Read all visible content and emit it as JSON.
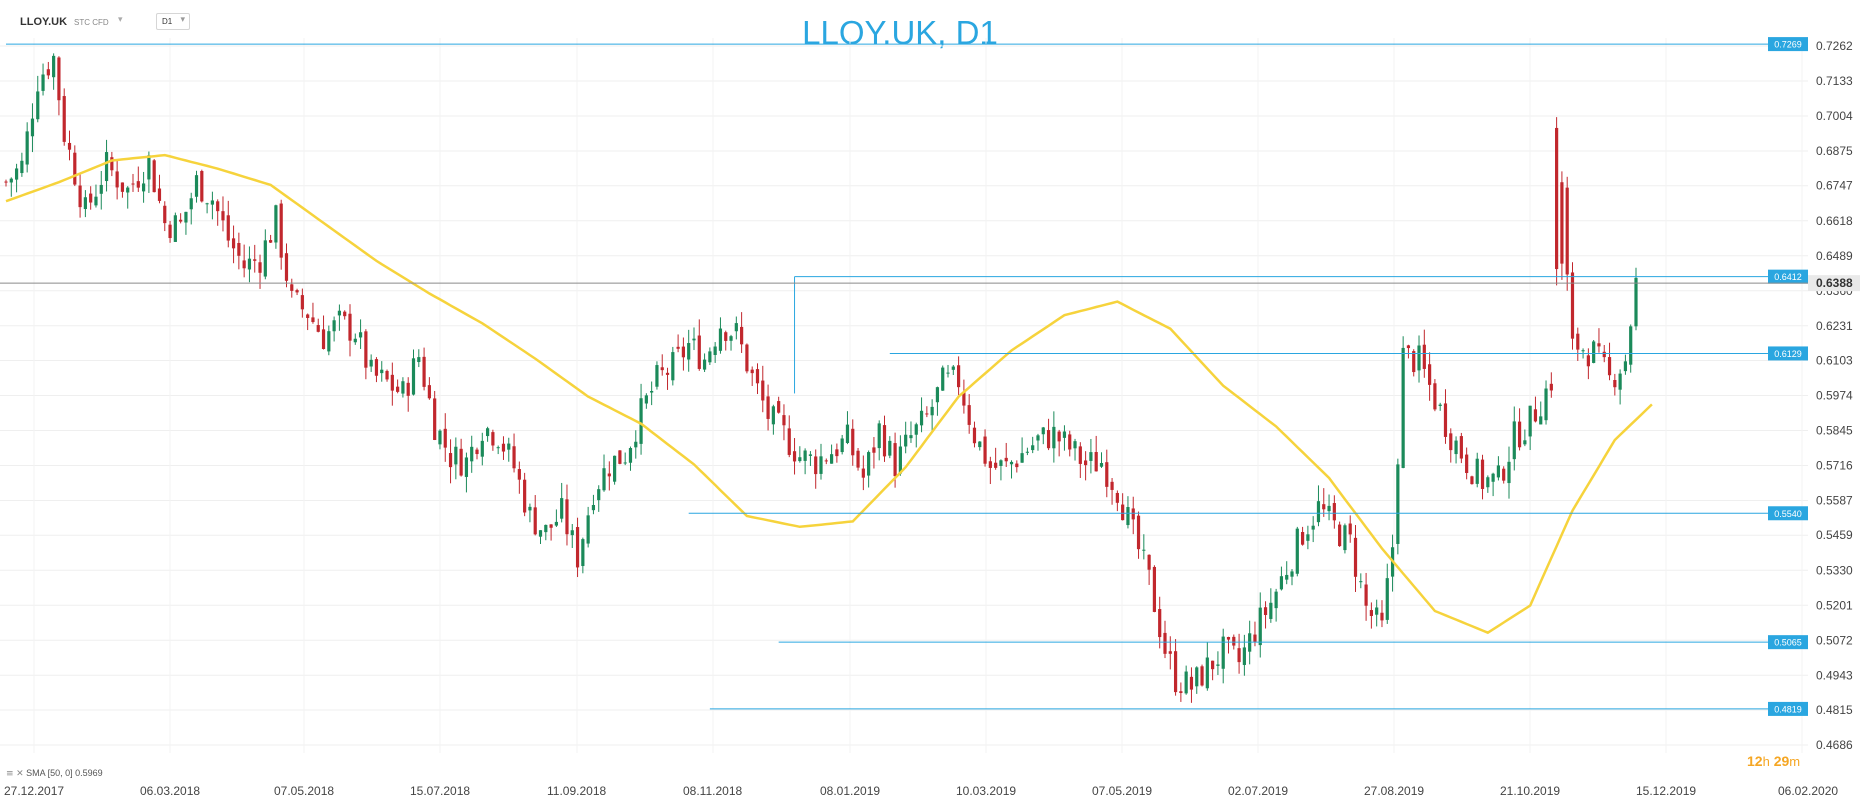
{
  "header": {
    "symbol": "LLOY.UK",
    "subtype": "STC CFD",
    "timeframe": "D1",
    "title": "LLOY.UK, D1"
  },
  "indicator": {
    "icons": [
      "≡",
      "✕"
    ],
    "label": "SMA [50, 0] 0.5969"
  },
  "countdown": {
    "hours": "12",
    "hours_unit": "h",
    "minutes": "29",
    "minutes_unit": "m"
  },
  "colors": {
    "up": "#1b8a5a",
    "down": "#c1272d",
    "sma": "#f6d33c",
    "level": "#2aa6e0",
    "price_line": "#8a8a8a",
    "title": "#2aa6e0",
    "countdown": "#f5a623"
  },
  "chart_data": {
    "type": "candlestick",
    "title": "LLOY.UK, D1",
    "x_labels": [
      "27.12.2017",
      "06.03.2018",
      "07.05.2018",
      "15.07.2018",
      "11.09.2018",
      "08.11.2018",
      "08.01.2019",
      "10.03.2019",
      "07.05.2019",
      "02.07.2019",
      "27.08.2019",
      "21.10.2019",
      "15.12.2019",
      "06.02.2020"
    ],
    "y_ticks": [
      "0.7262",
      "0.7133",
      "0.7004",
      "0.6875",
      "0.6747",
      "0.6618",
      "0.6489",
      "0.6360",
      "0.6231",
      "0.6103",
      "0.5974",
      "0.5845",
      "0.5716",
      "0.5587",
      "0.5459",
      "0.5330",
      "0.5201",
      "0.5072",
      "0.4943",
      "0.4815",
      "0.4686"
    ],
    "ylim": [
      0.4686,
      0.7262
    ],
    "grid": true,
    "current_price": "0.6388",
    "horizontal_levels": [
      {
        "label": "0.7269",
        "value": 0.7269,
        "from_index": 0
      },
      {
        "label": "0.6412",
        "value": 0.6412,
        "from_index": 149
      },
      {
        "label": "0.6129",
        "value": 0.6129,
        "from_index": 167
      },
      {
        "label": "0.5540",
        "value": 0.554,
        "from_index": 129
      },
      {
        "label": "0.5065",
        "value": 0.5065,
        "from_index": 146
      },
      {
        "label": "0.4819",
        "value": 0.4819,
        "from_index": 133
      }
    ],
    "close_path": [
      [
        0,
        0.676
      ],
      [
        3,
        0.682
      ],
      [
        6,
        0.714
      ],
      [
        9,
        0.722
      ],
      [
        11,
        0.694
      ],
      [
        15,
        0.665
      ],
      [
        19,
        0.682
      ],
      [
        23,
        0.673
      ],
      [
        27,
        0.684
      ],
      [
        30,
        0.661
      ],
      [
        33,
        0.66
      ],
      [
        36,
        0.676
      ],
      [
        39,
        0.67
      ],
      [
        42,
        0.655
      ],
      [
        45,
        0.645
      ],
      [
        48,
        0.648
      ],
      [
        51,
        0.662
      ],
      [
        54,
        0.632
      ],
      [
        57,
        0.628
      ],
      [
        60,
        0.619
      ],
      [
        63,
        0.624
      ],
      [
        66,
        0.621
      ],
      [
        69,
        0.605
      ],
      [
        72,
        0.602
      ],
      [
        75,
        0.598
      ],
      [
        78,
        0.612
      ],
      [
        81,
        0.587
      ],
      [
        84,
        0.575
      ],
      [
        87,
        0.573
      ],
      [
        90,
        0.586
      ],
      [
        93,
        0.583
      ],
      [
        96,
        0.571
      ],
      [
        99,
        0.553
      ],
      [
        102,
        0.547
      ],
      [
        105,
        0.554
      ],
      [
        108,
        0.538
      ],
      [
        111,
        0.563
      ],
      [
        114,
        0.572
      ],
      [
        117,
        0.576
      ],
      [
        120,
        0.591
      ],
      [
        123,
        0.603
      ],
      [
        126,
        0.608
      ],
      [
        129,
        0.616
      ],
      [
        132,
        0.611
      ],
      [
        135,
        0.624
      ],
      [
        138,
        0.62
      ],
      [
        141,
        0.604
      ],
      [
        144,
        0.59
      ],
      [
        147,
        0.583
      ],
      [
        150,
        0.575
      ],
      [
        153,
        0.573
      ],
      [
        156,
        0.577
      ],
      [
        159,
        0.581
      ],
      [
        162,
        0.567
      ],
      [
        165,
        0.585
      ],
      [
        168,
        0.572
      ],
      [
        171,
        0.582
      ],
      [
        174,
        0.589
      ],
      [
        177,
        0.602
      ],
      [
        180,
        0.603
      ],
      [
        183,
        0.583
      ],
      [
        186,
        0.571
      ],
      [
        189,
        0.571
      ],
      [
        192,
        0.576
      ],
      [
        195,
        0.581
      ],
      [
        198,
        0.583
      ],
      [
        201,
        0.578
      ],
      [
        204,
        0.572
      ],
      [
        207,
        0.573
      ],
      [
        210,
        0.563
      ],
      [
        213,
        0.546
      ],
      [
        216,
        0.529
      ],
      [
        219,
        0.504
      ],
      [
        221,
        0.493
      ],
      [
        224,
        0.49
      ],
      [
        227,
        0.497
      ],
      [
        230,
        0.503
      ],
      [
        233,
        0.499
      ],
      [
        236,
        0.511
      ],
      [
        239,
        0.521
      ],
      [
        242,
        0.534
      ],
      [
        245,
        0.547
      ],
      [
        248,
        0.556
      ],
      [
        251,
        0.549
      ],
      [
        254,
        0.543
      ],
      [
        257,
        0.519
      ],
      [
        260,
        0.511
      ],
      [
        262,
        0.542
      ],
      [
        264,
        0.612
      ],
      [
        267,
        0.61
      ],
      [
        270,
        0.596
      ],
      [
        273,
        0.583
      ],
      [
        276,
        0.573
      ],
      [
        279,
        0.566
      ],
      [
        282,
        0.566
      ],
      [
        285,
        0.582
      ],
      [
        288,
        0.588
      ],
      [
        291,
        0.599
      ],
      [
        294,
        0.611
      ],
      [
        297,
        0.616
      ],
      [
        300,
        0.613
      ],
      [
        303,
        0.603
      ],
      [
        306,
        0.611
      ],
      [
        308,
        0.6388
      ]
    ],
    "spikes": [
      {
        "index": 293,
        "high": 0.7,
        "low": 0.638
      },
      {
        "index": 294,
        "high": 0.68,
        "low": 0.64
      },
      {
        "index": 295,
        "high": 0.678,
        "low": 0.636
      }
    ],
    "candle_count": 309,
    "sma_series_name": "SMA [50, 0]",
    "sma_path": [
      [
        0,
        0.669
      ],
      [
        10,
        0.676
      ],
      [
        20,
        0.684
      ],
      [
        30,
        0.686
      ],
      [
        40,
        0.681
      ],
      [
        50,
        0.675
      ],
      [
        60,
        0.661
      ],
      [
        70,
        0.647
      ],
      [
        80,
        0.635
      ],
      [
        90,
        0.624
      ],
      [
        100,
        0.611
      ],
      [
        110,
        0.597
      ],
      [
        120,
        0.587
      ],
      [
        130,
        0.572
      ],
      [
        140,
        0.553
      ],
      [
        150,
        0.549
      ],
      [
        160,
        0.551
      ],
      [
        170,
        0.571
      ],
      [
        180,
        0.597
      ],
      [
        190,
        0.614
      ],
      [
        200,
        0.627
      ],
      [
        210,
        0.632
      ],
      [
        220,
        0.622
      ],
      [
        230,
        0.601
      ],
      [
        240,
        0.586
      ],
      [
        250,
        0.567
      ],
      [
        260,
        0.541
      ],
      [
        270,
        0.518
      ],
      [
        280,
        0.51
      ],
      [
        288,
        0.52
      ],
      [
        296,
        0.555
      ],
      [
        304,
        0.581
      ],
      [
        312,
        0.596
      ]
    ]
  }
}
